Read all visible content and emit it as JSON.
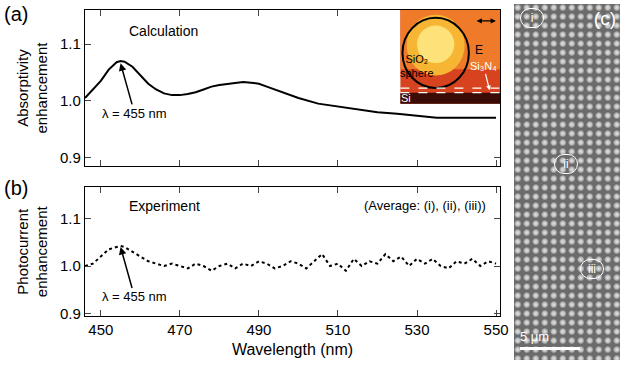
{
  "chart_data": [
    {
      "panel": "(a)",
      "type": "line",
      "title": "Calculation",
      "y_label": "Absorptivity enhancement",
      "x": [
        446,
        448,
        450,
        452,
        454,
        455,
        456,
        458,
        460,
        462,
        464,
        466,
        468,
        470,
        472,
        474,
        476,
        478,
        480,
        482,
        484,
        486,
        488,
        490,
        492,
        494,
        496,
        498,
        500,
        505,
        510,
        515,
        520,
        525,
        530,
        535,
        540,
        545,
        550
      ],
      "values": [
        1.005,
        1.02,
        1.035,
        1.055,
        1.068,
        1.07,
        1.069,
        1.06,
        1.045,
        1.03,
        1.02,
        1.013,
        1.01,
        1.01,
        1.012,
        1.015,
        1.02,
        1.025,
        1.028,
        1.03,
        1.032,
        1.033,
        1.032,
        1.03,
        1.025,
        1.02,
        1.015,
        1.01,
        1.005,
        0.995,
        0.99,
        0.985,
        0.98,
        0.977,
        0.973,
        0.97,
        0.97,
        0.97,
        0.97
      ],
      "color": "#000000",
      "line_style": "solid",
      "xlim": [
        446,
        551
      ],
      "xticks": [
        450,
        470,
        490,
        510,
        530,
        550
      ],
      "ylim": [
        0.885,
        1.16
      ],
      "yticks": [
        0.9,
        {
          "value": 1,
          "label": "1.0"
        },
        1.1
      ],
      "tick_labels": "y",
      "annotations": [
        {
          "text": "λ = 455 nm",
          "x": 455,
          "y": 1.066
        }
      ],
      "inset": {
        "sphere": "SiO₂ sphere",
        "layer": "Si₃N₄",
        "substrate": "Si",
        "field": "E"
      }
    },
    {
      "panel": "(b)",
      "type": "line",
      "title": "Experiment",
      "subtitle": "(Average: (i), (ii), (iii))",
      "y_label": "Photocurrent enhancement",
      "x_label": "Wavelength (nm)",
      "x": [
        446,
        448,
        450,
        452,
        454,
        455,
        456,
        458,
        460,
        462,
        464,
        466,
        468,
        470,
        472,
        474,
        476,
        478,
        480,
        482,
        484,
        486,
        488,
        490,
        492,
        494,
        496,
        498,
        500,
        502,
        504,
        506,
        508,
        510,
        512,
        514,
        516,
        518,
        520,
        522,
        524,
        526,
        528,
        530,
        532,
        534,
        536,
        538,
        540,
        542,
        544,
        546,
        548,
        550
      ],
      "values": [
        1.0,
        1.005,
        1.02,
        1.035,
        1.04,
        1.042,
        1.04,
        1.03,
        1.02,
        1.01,
        1.005,
        1.0,
        1.005,
        1.0,
        0.995,
        1.005,
        1.0,
        0.99,
        1.0,
        1.005,
        0.995,
        1.005,
        1.0,
        1.01,
        1.005,
        0.995,
        1.0,
        1.01,
        1.005,
        0.995,
        1.01,
        1.025,
        1.0,
        1.005,
        0.99,
        1.015,
        1.0,
        1.01,
        1.005,
        1.025,
        1.01,
        1.02,
        1.0,
        1.015,
        1.005,
        1.015,
        1.0,
        0.995,
        1.01,
        1.005,
        1.015,
        1.0,
        1.01,
        1.005
      ],
      "color": "#000000",
      "line_style": "dotted",
      "xlim": [
        446,
        551
      ],
      "xticks": [
        450,
        470,
        490,
        510,
        530,
        550
      ],
      "ylim": [
        0.895,
        1.165
      ],
      "yticks": [
        0.9,
        {
          "value": 1,
          "label": "1.0"
        },
        1.1
      ],
      "annotations": [
        {
          "text": "λ = 455 nm",
          "x": 455,
          "y": 1.04
        }
      ]
    }
  ],
  "image_panel": {
    "panel": "(c)",
    "markers": [
      "i",
      "ii",
      "iii"
    ],
    "scale_bar": "5 μm"
  }
}
